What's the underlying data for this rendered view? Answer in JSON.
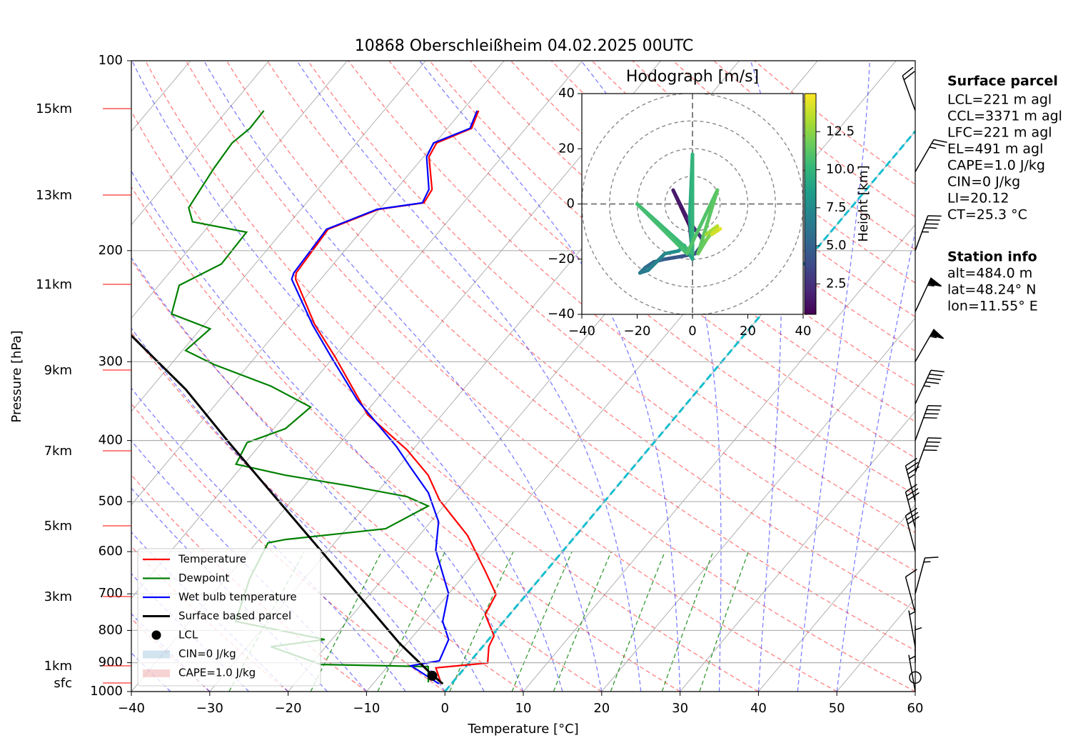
{
  "chart_data": [
    {
      "type": "skewt",
      "title": "10868 Oberschleißheim 04.02.2025 00UTC",
      "xlabel": "Temperature [°C]",
      "ylabel": "Pressure [hPa]",
      "xlim": [
        -40,
        60
      ],
      "ylim": [
        1000,
        100
      ],
      "log_y": true,
      "grid": true,
      "xticks": [
        {
          "value": -40,
          "label": "−40"
        },
        {
          "value": -30,
          "label": "−30"
        },
        {
          "value": -20,
          "label": "−20"
        },
        {
          "value": -10,
          "label": "−10"
        },
        0,
        10,
        20,
        30,
        40,
        50,
        60
      ],
      "yticks": [
        100,
        200,
        300,
        400,
        500,
        600,
        700,
        800,
        900,
        1000
      ],
      "series": [
        {
          "name": "Temperature",
          "color": "red",
          "pressure": [
            972,
            917,
            901,
            849,
            816,
            755,
            701,
            645,
            566,
            497,
            454,
            414,
            364,
            295,
            262,
            222,
            217,
            185,
            172,
            168,
            160,
            142,
            135,
            128,
            120
          ],
          "values": [
            -1.3,
            -3.7,
            2.4,
            0.8,
            0.3,
            -3.1,
            -3.9,
            -7.7,
            -13.8,
            -21.2,
            -25.3,
            -30.7,
            -39.5,
            -49.8,
            -55.9,
            -63.2,
            -63.8,
            -64.4,
            -60.1,
            -55.0,
            -55.4,
            -59.3,
            -59.8,
            -56.9,
            -57.9
          ]
        },
        {
          "name": "Dewpoint",
          "color": "green",
          "pressure": [
            967,
            913,
            906,
            849,
            827,
            774,
            662,
            581,
            574,
            552,
            508,
            491,
            472,
            454,
            436,
            403,
            383,
            354,
            328,
            303,
            288,
            266,
            252,
            227,
            210,
            187,
            180,
            171,
            148,
            135,
            128,
            120
          ],
          "values": [
            -3.1,
            -4.8,
            -18.7,
            -27.0,
            -20.9,
            -34.2,
            -37.0,
            -38.5,
            -36.6,
            -25.0,
            -22.0,
            -25.7,
            -34.2,
            -43.5,
            -51.0,
            -51.9,
            -48.5,
            -47.6,
            -54.9,
            -64.5,
            -69.6,
            -68.8,
            -75.3,
            -77.4,
            -74.3,
            -74.5,
            -82.5,
            -84.5,
            -85.5,
            -85.9,
            -85.2,
            -85.3
          ]
        },
        {
          "name": "Wet bulb temperature",
          "color": "blue",
          "pressure": [
            972,
            910,
            894,
            827,
            774,
            698,
            597,
            538,
            484,
            442,
            409,
            345,
            295,
            262,
            222,
            217,
            185,
            172,
            168,
            160,
            142,
            135,
            128,
            120
          ],
          "values": [
            -1.6,
            -7.1,
            -4.0,
            -5.1,
            -7.8,
            -10.1,
            -16.3,
            -19.0,
            -23.4,
            -28.3,
            -32.4,
            -42.4,
            -50.3,
            -56.2,
            -63.7,
            -64.1,
            -64.6,
            -60.3,
            -55.2,
            -55.8,
            -59.6,
            -60.2,
            -57.1,
            -58.1
          ]
        },
        {
          "name": "Surface based parcel",
          "color": "black",
          "pressure": [
            972,
            941,
            838,
            698,
            581,
            484,
            403,
            332,
            272
          ],
          "values": [
            -1.1,
            -3.4,
            -11.0,
            -21.8,
            -32.6,
            -43.4,
            -54.2,
            -65.4,
            -78.3
          ]
        }
      ],
      "lcl": {
        "name": "LCL",
        "color": "black",
        "pressure": 944,
        "value": -3.3
      },
      "legend": [
        {
          "label": "CIN=0 J/kg",
          "color": "#1f77b4"
        },
        {
          "label": "CAPE=1.0 J/kg",
          "color": "#d62728"
        }
      ],
      "wind_barbs": {
        "pressure": [
          120,
          150,
          200,
          250,
          300,
          350,
          400,
          450,
          500,
          550,
          600,
          700,
          750,
          850,
          900,
          950,
          1000
        ],
        "speed": [
          20,
          25,
          45,
          55,
          55,
          45,
          40,
          40,
          35,
          30,
          30,
          15,
          10,
          5,
          5,
          0,
          5
        ],
        "direction": [
          340,
          30,
          20,
          25,
          30,
          25,
          20,
          20,
          345,
          345,
          345,
          15,
          345,
          350,
          0,
          0,
          350
        ]
      }
    },
    {
      "type": "hodograph",
      "title": "Hodograph [m/s]",
      "xlim": [
        -40,
        40
      ],
      "ylim": [
        -40,
        40
      ],
      "xticks": [
        {
          "value": -40,
          "label": "−40"
        },
        {
          "value": -20,
          "label": "−20"
        },
        0,
        20,
        40
      ],
      "yticks": [
        {
          "value": -40,
          "label": "−40"
        },
        {
          "value": -20,
          "label": "−20"
        },
        0,
        20,
        40
      ],
      "u": [
        0,
        -1,
        -7,
        -2,
        0,
        3,
        4,
        1,
        -4,
        -10,
        -14,
        -17,
        -19,
        -16,
        -10,
        -5,
        -3,
        0,
        -1,
        0,
        0,
        -20,
        -2,
        9,
        2,
        5,
        8,
        5,
        9,
        7,
        10
      ],
      "v": [
        -18,
        -8,
        5,
        -5,
        -8,
        -12,
        -14,
        -18,
        -19,
        -20,
        -21,
        -23,
        -25,
        -24,
        -18,
        -17,
        -15,
        -20,
        -5,
        18,
        -18,
        0,
        -18,
        5,
        -18,
        -13,
        -9,
        -11,
        -8,
        -11,
        -9
      ],
      "height": [
        0.5,
        1.0,
        1.5,
        2.0,
        2.5,
        3.0,
        3.5,
        4.0,
        4.5,
        5.0,
        5.5,
        6.0,
        6.5,
        7.0,
        7.5,
        8.0,
        8.5,
        9.0,
        9.5,
        10.0,
        10.3,
        10.6,
        11.0,
        11.3,
        11.6,
        12.0,
        12.5,
        13.0,
        13.5,
        14.0,
        14.5
      ],
      "colormap": "viridis",
      "colorbar": {
        "label": "Height [km]",
        "lim": [
          0.5,
          15.0
        ],
        "ticks": [
          2.5,
          {
            "value": 5,
            "label": "5.0"
          },
          7.5,
          {
            "value": 10,
            "label": "10.0"
          },
          12.5
        ]
      }
    }
  ],
  "height_labels": [
    "15km",
    "13km",
    "11km",
    "9km",
    "7km",
    "5km",
    "3km",
    "1km",
    "sfc"
  ],
  "surface_parcel": {
    "title": "Surface parcel",
    "lines": [
      "LCL=221 m agl",
      "CCL=3371 m agl",
      "LFC=221 m agl",
      "EL=491 m agl",
      "CAPE=1.0 J/kg",
      "CIN=0 J/kg",
      "LI=20.12",
      "CT=25.3 °C"
    ]
  },
  "station_info": {
    "title": "Station info",
    "lines": [
      "alt=484.0 m",
      "lat=48.24° N",
      "lon=11.55° E"
    ]
  }
}
